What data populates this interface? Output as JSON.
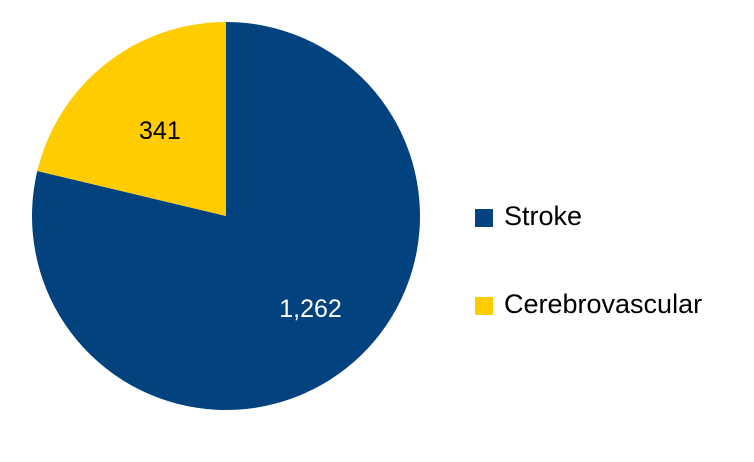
{
  "chart_data": {
    "type": "pie",
    "title": "",
    "categories": [
      "Stroke",
      "Cerebrovascular"
    ],
    "values": [
      1262,
      341
    ],
    "value_labels": [
      "1,262",
      "341"
    ],
    "colors": [
      "#02427F",
      "#FFCC00"
    ],
    "label_colors": [
      "#FFFFFF",
      "#000000"
    ],
    "start_angle_deg": 0,
    "direction": "clockwise",
    "legend": {
      "position": "right",
      "entries": [
        "Stroke",
        "Cerebrovascular"
      ]
    }
  }
}
